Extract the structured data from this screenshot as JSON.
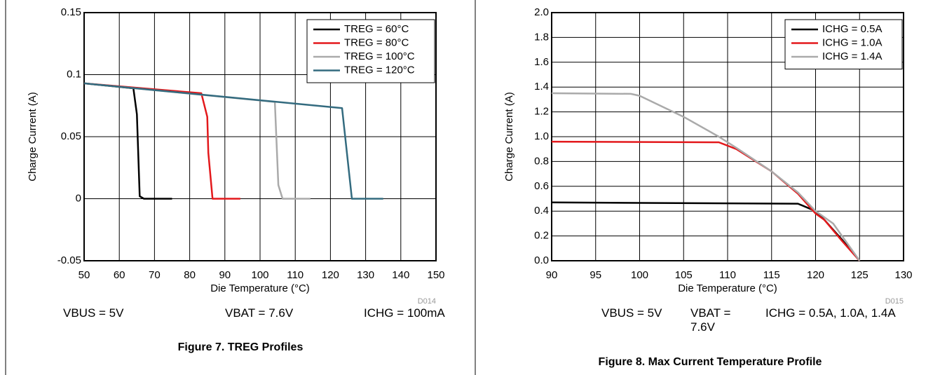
{
  "chart_data": [
    {
      "type": "line",
      "xlabel": "Die Temperature (°C)",
      "ylabel": "Charge Current (A)",
      "code": "D014",
      "xlim": [
        50,
        150
      ],
      "xticks": [
        50,
        60,
        70,
        80,
        90,
        100,
        110,
        120,
        130,
        140,
        150
      ],
      "ylim": [
        -0.05,
        0.15
      ],
      "yticks": [
        -0.05,
        0,
        0.05,
        0.1,
        0.15
      ],
      "grid": true,
      "legend": "upper right",
      "series": [
        {
          "name": "TREG = 60°C",
          "color": "#000000",
          "x": [
            50,
            64,
            65,
            65.8,
            67,
            75
          ],
          "values": [
            0.093,
            0.089,
            0.068,
            0.002,
            0,
            0
          ]
        },
        {
          "name": "TREG = 80°C",
          "color": "#e3191c",
          "x": [
            50,
            83.3,
            85,
            85.3,
            86.5,
            94.4
          ],
          "values": [
            0.093,
            0.085,
            0.066,
            0.037,
            0,
            0
          ]
        },
        {
          "name": "TREG = 100°C",
          "color": "#aaaaaa",
          "x": [
            50,
            104.2,
            105.2,
            106.4,
            114.3
          ],
          "values": [
            0.093,
            0.078,
            0.011,
            0,
            0
          ]
        },
        {
          "name": "TREG = 120°C",
          "color": "#336b7f",
          "x": [
            50,
            123.3,
            126.1,
            135
          ],
          "values": [
            0.093,
            0.073,
            0,
            0
          ]
        }
      ],
      "conditions": [
        "VBUS = 5V",
        "VBAT = 7.6V",
        "ICHG = 100mA"
      ],
      "caption": "Figure 7. TREG Profiles"
    },
    {
      "type": "line",
      "xlabel": "Die Temperature (°C)",
      "ylabel": "Charge Current (A)",
      "code": "D015",
      "xlim": [
        90,
        130
      ],
      "xticks": [
        90,
        95,
        100,
        105,
        110,
        115,
        120,
        125,
        130
      ],
      "ylim": [
        0,
        2
      ],
      "yticks": [
        {
          "value": 0,
          "label": "0.0"
        },
        0.2,
        0.4,
        0.6,
        0.8,
        {
          "value": 1,
          "label": "1.0"
        },
        1.2,
        1.4,
        1.6,
        1.8,
        {
          "value": 2,
          "label": "2.0"
        }
      ],
      "grid": true,
      "legend": "upper right",
      "series": [
        {
          "name": "ICHG = 0.5A",
          "color": "#000000",
          "x": [
            90,
            118,
            120,
            121,
            123,
            125
          ],
          "values": [
            0.47,
            0.46,
            0.4,
            0.33,
            0.17,
            0
          ]
        },
        {
          "name": "ICHG = 1.0A",
          "color": "#e3191c",
          "x": [
            90,
            109,
            111,
            115,
            118,
            120,
            121,
            123,
            125
          ],
          "values": [
            0.96,
            0.955,
            0.9,
            0.72,
            0.54,
            0.38,
            0.33,
            0.16,
            0
          ]
        },
        {
          "name": "ICHG = 1.4A",
          "color": "#aaaaaa",
          "x": [
            90,
            99,
            100,
            105,
            109,
            111,
            115,
            118,
            120,
            122,
            125
          ],
          "values": [
            1.35,
            1.345,
            1.33,
            1.16,
            1.0,
            0.91,
            0.72,
            0.55,
            0.4,
            0.3,
            0
          ]
        }
      ],
      "conditions": [
        "VBUS = 5V",
        "VBAT = 7.6V",
        "ICHG = 0.5A, 1.0A, 1.4A"
      ],
      "caption": "Figure 8. Max Current Temperature Profile"
    }
  ]
}
